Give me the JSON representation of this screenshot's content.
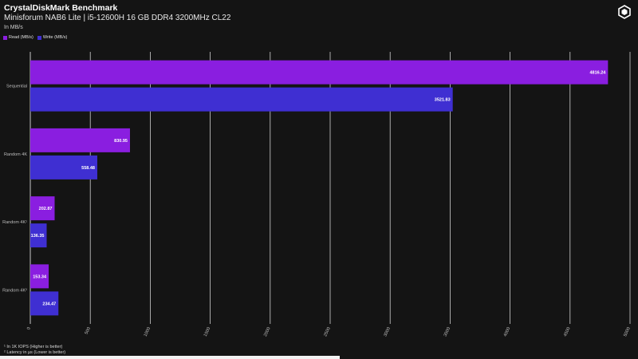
{
  "header": {
    "title": "CrystalDiskMark Benchmark",
    "subtitle": "Minisforum NAB6 Lite | i5-12600H 16 GB DDR4 3200MHz CL22",
    "unit_label": "In MB/s"
  },
  "logo": {
    "icon": "hexagon-logo-icon"
  },
  "footnotes": {
    "note1": "¹ In 1K IOPS (Higher is better)",
    "note2": "² Latency in µs (Lower is better)"
  },
  "chart_data": {
    "type": "bar",
    "orientation": "horizontal",
    "categories": [
      "Sequential",
      "Random 4K",
      "Random 4K¹",
      "Random 4K²"
    ],
    "series": [
      {
        "name": "Read (MB/s)",
        "color": "#8a1ee0",
        "values": [
          4816.24,
          830.95,
          202.87,
          153.34
        ]
      },
      {
        "name": "Write (MB/s)",
        "color": "#3f2fd2",
        "values": [
          3521.83,
          558.48,
          136.35,
          234.47
        ]
      }
    ],
    "value_labels": {
      "read": [
        "4816.24",
        "830.95",
        "202.87",
        "153.34"
      ],
      "write": [
        "3521.83",
        "558.48",
        "136.35",
        "234.47"
      ]
    },
    "xlim": [
      0,
      5000
    ],
    "x_ticks": [
      0,
      500,
      1000,
      1500,
      2000,
      2500,
      3000,
      3500,
      4000,
      4500,
      5000
    ],
    "x_tick_labels": [
      "0",
      "500",
      "1000",
      "1500",
      "2000",
      "2500",
      "3000",
      "3500",
      "4000",
      "4500",
      "5000"
    ],
    "grid": true,
    "legend_position": "top-left"
  }
}
